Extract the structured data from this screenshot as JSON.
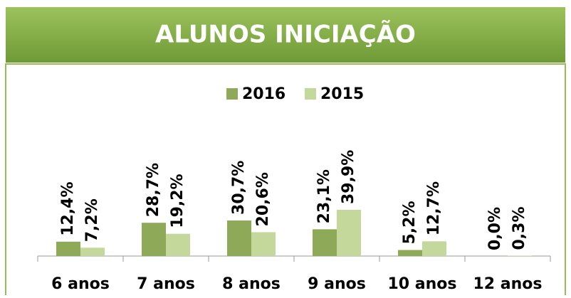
{
  "chart_data": {
    "type": "bar",
    "title": "ALUNOS INICIAÇÃO",
    "categories": [
      "6 anos",
      "7 anos",
      "8 anos",
      "9 anos",
      "10 anos",
      "12 anos"
    ],
    "series": [
      {
        "name": "2016",
        "color": "#8eaa59",
        "values": [
          12.4,
          28.7,
          30.7,
          23.1,
          5.2,
          0.0
        ],
        "value_labels": [
          "12,4%",
          "28,7%",
          "30,7%",
          "23,1%",
          "5,2%",
          "0,0%"
        ]
      },
      {
        "name": "2015",
        "color": "#c4d89c",
        "values": [
          7.2,
          19.2,
          20.6,
          39.9,
          12.7,
          0.3
        ],
        "value_labels": [
          "7,2%",
          "19,2%",
          "20,6%",
          "39,9%",
          "12,7%",
          "0,3%"
        ]
      }
    ],
    "legend": "top"
  }
}
